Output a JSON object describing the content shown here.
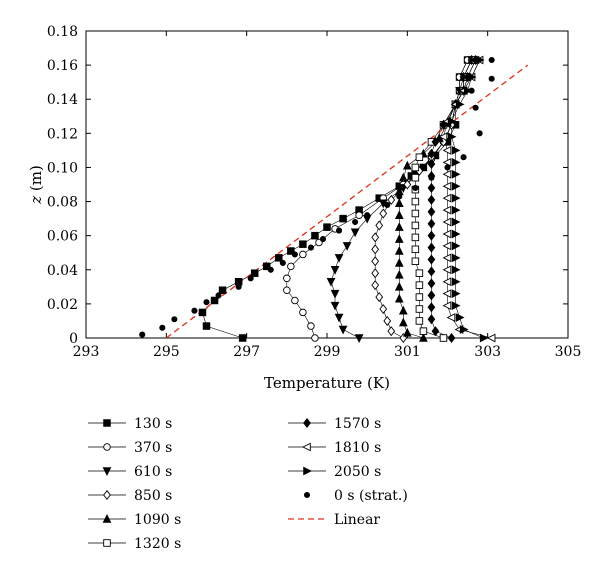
{
  "chart_data": {
    "type": "line",
    "xlabel": "Temperature (K)",
    "ylabel_italic": "z",
    "ylabel_unit": " (m)",
    "xlim": [
      293,
      305
    ],
    "ylim": [
      0,
      0.18
    ],
    "xticks": [
      293,
      295,
      297,
      299,
      301,
      303,
      305
    ],
    "yticks": [
      0,
      0.02,
      0.04,
      0.06,
      0.08,
      0.1,
      0.12,
      0.14,
      0.16,
      0.18
    ],
    "ytick_labels": [
      "0",
      "0.02",
      "0.04",
      "0.06",
      "0.08",
      "0.10",
      "0.12",
      "0.14",
      "0.16",
      "0.18"
    ],
    "grid": false,
    "legend_position": "bottom",
    "series": [
      {
        "name": "130 s",
        "marker": "square-filled",
        "points": [
          [
            296.9,
            0
          ],
          [
            296.0,
            0.007
          ],
          [
            295.9,
            0.015
          ],
          [
            296.2,
            0.022
          ],
          [
            296.4,
            0.028
          ],
          [
            296.8,
            0.033
          ],
          [
            297.2,
            0.038
          ],
          [
            297.5,
            0.042
          ],
          [
            297.8,
            0.047
          ],
          [
            298.1,
            0.051
          ],
          [
            298.4,
            0.055
          ],
          [
            298.7,
            0.06
          ],
          [
            299.0,
            0.065
          ],
          [
            299.4,
            0.07
          ],
          [
            299.8,
            0.075
          ],
          [
            300.3,
            0.082
          ],
          [
            300.8,
            0.089
          ],
          [
            301.1,
            0.095
          ],
          [
            301.4,
            0.1
          ],
          [
            301.7,
            0.107
          ],
          [
            302.0,
            0.115
          ],
          [
            302.2,
            0.125
          ],
          [
            302.2,
            0.137
          ],
          [
            302.3,
            0.145
          ],
          [
            302.3,
            0.153
          ],
          [
            302.5,
            0.163
          ]
        ]
      },
      {
        "name": "370 s",
        "marker": "circle-open",
        "points": [
          [
            298.7,
            0
          ],
          [
            298.6,
            0.007
          ],
          [
            298.4,
            0.015
          ],
          [
            298.2,
            0.022
          ],
          [
            298.0,
            0.028
          ],
          [
            298.0,
            0.035
          ],
          [
            298.1,
            0.042
          ],
          [
            298.4,
            0.049
          ],
          [
            298.8,
            0.056
          ],
          [
            299.2,
            0.064
          ],
          [
            299.8,
            0.072
          ],
          [
            300.4,
            0.082
          ],
          [
            300.9,
            0.09
          ],
          [
            301.2,
            0.097
          ],
          [
            301.6,
            0.105
          ],
          [
            301.9,
            0.115
          ],
          [
            302.1,
            0.125
          ],
          [
            302.2,
            0.137
          ],
          [
            302.3,
            0.145
          ],
          [
            302.3,
            0.153
          ],
          [
            302.5,
            0.163
          ]
        ]
      },
      {
        "name": "610 s",
        "marker": "triangle-down-filled",
        "points": [
          [
            299.8,
            0
          ],
          [
            299.4,
            0.005
          ],
          [
            299.3,
            0.012
          ],
          [
            299.2,
            0.019
          ],
          [
            299.2,
            0.026
          ],
          [
            299.1,
            0.033
          ],
          [
            299.2,
            0.04
          ],
          [
            299.3,
            0.047
          ],
          [
            299.5,
            0.054
          ],
          [
            299.7,
            0.062
          ],
          [
            300.0,
            0.07
          ],
          [
            300.4,
            0.079
          ],
          [
            300.9,
            0.088
          ],
          [
            301.2,
            0.096
          ],
          [
            301.6,
            0.105
          ],
          [
            301.9,
            0.115
          ],
          [
            302.1,
            0.125
          ],
          [
            302.2,
            0.137
          ],
          [
            302.3,
            0.145
          ],
          [
            302.4,
            0.153
          ],
          [
            302.6,
            0.163
          ]
        ]
      },
      {
        "name": "850 s",
        "marker": "diamond-open",
        "points": [
          [
            300.9,
            0
          ],
          [
            300.6,
            0.004
          ],
          [
            300.5,
            0.01
          ],
          [
            300.4,
            0.017
          ],
          [
            300.3,
            0.024
          ],
          [
            300.2,
            0.031
          ],
          [
            300.2,
            0.038
          ],
          [
            300.2,
            0.045
          ],
          [
            300.2,
            0.052
          ],
          [
            300.2,
            0.059
          ],
          [
            300.3,
            0.066
          ],
          [
            300.4,
            0.073
          ],
          [
            300.6,
            0.081
          ],
          [
            301.0,
            0.09
          ],
          [
            301.3,
            0.098
          ],
          [
            301.6,
            0.106
          ],
          [
            301.9,
            0.115
          ],
          [
            302.1,
            0.125
          ],
          [
            302.2,
            0.137
          ],
          [
            302.4,
            0.145
          ],
          [
            302.4,
            0.153
          ],
          [
            302.6,
            0.163
          ]
        ]
      },
      {
        "name": "1090 s",
        "marker": "triangle-up-filled",
        "points": [
          [
            301.4,
            0
          ],
          [
            301.0,
            0.003
          ],
          [
            300.9,
            0.009
          ],
          [
            300.9,
            0.016
          ],
          [
            300.8,
            0.023
          ],
          [
            300.8,
            0.03
          ],
          [
            300.8,
            0.037
          ],
          [
            300.8,
            0.044
          ],
          [
            300.8,
            0.051
          ],
          [
            300.8,
            0.058
          ],
          [
            300.8,
            0.065
          ],
          [
            300.8,
            0.072
          ],
          [
            300.8,
            0.079
          ],
          [
            300.8,
            0.086
          ],
          [
            300.9,
            0.094
          ],
          [
            301.0,
            0.101
          ],
          [
            301.4,
            0.108
          ],
          [
            301.8,
            0.117
          ],
          [
            302.0,
            0.126
          ],
          [
            302.2,
            0.137
          ],
          [
            302.4,
            0.145
          ],
          [
            302.4,
            0.153
          ],
          [
            302.6,
            0.163
          ]
        ]
      },
      {
        "name": "1320 s",
        "marker": "square-open",
        "points": [
          [
            301.9,
            0
          ],
          [
            301.4,
            0.004
          ],
          [
            301.3,
            0.01
          ],
          [
            301.3,
            0.017
          ],
          [
            301.3,
            0.024
          ],
          [
            301.3,
            0.031
          ],
          [
            301.3,
            0.038
          ],
          [
            301.2,
            0.045
          ],
          [
            301.2,
            0.052
          ],
          [
            301.2,
            0.059
          ],
          [
            301.2,
            0.066
          ],
          [
            301.2,
            0.073
          ],
          [
            301.2,
            0.08
          ],
          [
            301.2,
            0.087
          ],
          [
            301.2,
            0.094
          ],
          [
            301.2,
            0.1
          ],
          [
            301.3,
            0.106
          ],
          [
            301.6,
            0.115
          ],
          [
            301.9,
            0.125
          ],
          [
            302.2,
            0.137
          ],
          [
            302.4,
            0.145
          ],
          [
            302.5,
            0.153
          ],
          [
            302.7,
            0.163
          ]
        ]
      },
      {
        "name": "1570 s",
        "marker": "diamond-filled",
        "points": [
          [
            302.1,
            0
          ],
          [
            301.7,
            0.004
          ],
          [
            301.6,
            0.011
          ],
          [
            301.6,
            0.018
          ],
          [
            301.6,
            0.025
          ],
          [
            301.6,
            0.032
          ],
          [
            301.6,
            0.039
          ],
          [
            301.6,
            0.046
          ],
          [
            301.6,
            0.053
          ],
          [
            301.6,
            0.06
          ],
          [
            301.6,
            0.067
          ],
          [
            301.6,
            0.074
          ],
          [
            301.6,
            0.081
          ],
          [
            301.6,
            0.088
          ],
          [
            301.6,
            0.095
          ],
          [
            301.6,
            0.102
          ],
          [
            301.6,
            0.108
          ],
          [
            301.7,
            0.115
          ],
          [
            301.9,
            0.125
          ],
          [
            302.2,
            0.137
          ],
          [
            302.4,
            0.145
          ],
          [
            302.5,
            0.153
          ],
          [
            302.7,
            0.163
          ]
        ]
      },
      {
        "name": "1810 s",
        "marker": "triangle-left-open",
        "points": [
          [
            303.1,
            0
          ],
          [
            302.3,
            0.005
          ],
          [
            302.1,
            0.012
          ],
          [
            302.0,
            0.019
          ],
          [
            302.0,
            0.026
          ],
          [
            302.0,
            0.033
          ],
          [
            302.0,
            0.04
          ],
          [
            302.0,
            0.047
          ],
          [
            302.0,
            0.054
          ],
          [
            302.0,
            0.061
          ],
          [
            302.0,
            0.068
          ],
          [
            302.0,
            0.075
          ],
          [
            302.0,
            0.082
          ],
          [
            302.0,
            0.089
          ],
          [
            302.0,
            0.096
          ],
          [
            302.0,
            0.103
          ],
          [
            302.0,
            0.11
          ],
          [
            301.9,
            0.118
          ],
          [
            302.0,
            0.127
          ],
          [
            302.2,
            0.137
          ],
          [
            302.4,
            0.145
          ],
          [
            302.6,
            0.153
          ],
          [
            302.8,
            0.163
          ]
        ]
      },
      {
        "name": "2050 s",
        "marker": "triangle-right-filled",
        "points": [
          [
            302.9,
            0
          ],
          [
            302.4,
            0.005
          ],
          [
            302.3,
            0.012
          ],
          [
            302.2,
            0.019
          ],
          [
            302.2,
            0.026
          ],
          [
            302.2,
            0.033
          ],
          [
            302.2,
            0.04
          ],
          [
            302.2,
            0.047
          ],
          [
            302.2,
            0.054
          ],
          [
            302.2,
            0.061
          ],
          [
            302.2,
            0.068
          ],
          [
            302.2,
            0.075
          ],
          [
            302.2,
            0.082
          ],
          [
            302.2,
            0.089
          ],
          [
            302.2,
            0.096
          ],
          [
            302.2,
            0.103
          ],
          [
            302.2,
            0.11
          ],
          [
            302.1,
            0.118
          ],
          [
            302.1,
            0.127
          ],
          [
            302.3,
            0.137
          ],
          [
            302.5,
            0.145
          ],
          [
            302.6,
            0.153
          ],
          [
            302.8,
            0.163
          ]
        ]
      },
      {
        "name": "0 s (strat.)",
        "marker": "dot",
        "line": false,
        "points": [
          [
            294.4,
            0.002
          ],
          [
            294.9,
            0.006
          ],
          [
            295.2,
            0.011
          ],
          [
            295.7,
            0.016
          ],
          [
            296.0,
            0.021
          ],
          [
            296.3,
            0.025
          ],
          [
            296.8,
            0.03
          ],
          [
            297.1,
            0.035
          ],
          [
            297.6,
            0.04
          ],
          [
            297.9,
            0.044
          ],
          [
            298.2,
            0.049
          ],
          [
            298.6,
            0.053
          ],
          [
            298.9,
            0.058
          ],
          [
            299.3,
            0.063
          ],
          [
            299.7,
            0.068
          ],
          [
            300.0,
            0.072
          ],
          [
            300.5,
            0.078
          ],
          [
            300.8,
            0.083
          ],
          [
            301.2,
            0.088
          ],
          [
            301.6,
            0.094
          ],
          [
            302.0,
            0.1
          ],
          [
            302.4,
            0.106
          ],
          [
            302.8,
            0.12
          ],
          [
            302.7,
            0.135
          ],
          [
            302.6,
            0.145
          ],
          [
            303.1,
            0.152
          ],
          [
            303.1,
            0.163
          ]
        ]
      },
      {
        "name": "Linear",
        "line_style": "dashed",
        "color": "#e0301e",
        "line": true,
        "marker": "none",
        "points": [
          [
            295.0,
            0
          ],
          [
            304.0,
            0.16
          ]
        ]
      }
    ]
  }
}
